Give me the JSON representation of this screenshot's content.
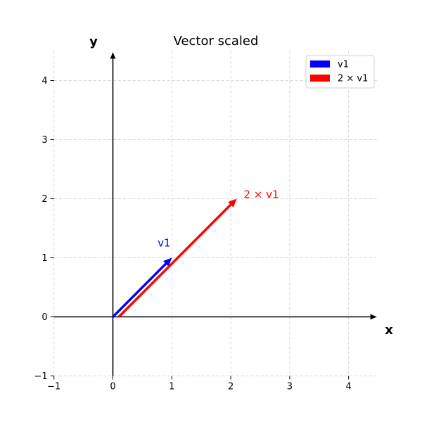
{
  "chart_data": {
    "type": "vector-plot",
    "title": "Vector scaled",
    "xlabel": "x",
    "ylabel": "y",
    "xlim": [
      -1,
      4.5
    ],
    "ylim": [
      -1,
      4.5
    ],
    "xticks": [
      -1,
      0,
      1,
      2,
      3,
      4
    ],
    "yticks": [
      -1,
      0,
      1,
      2,
      3,
      4
    ],
    "x_tick_labels": [
      "−1",
      "0",
      "1",
      "2",
      "3",
      "4"
    ],
    "y_tick_labels": [
      "−1",
      "0",
      "1",
      "2",
      "3",
      "4"
    ],
    "grid": true,
    "legend_position": "top-right",
    "series": [
      {
        "name": "v1",
        "color": "#0000ff",
        "origin": [
          0,
          0
        ],
        "vector": [
          1,
          1
        ],
        "label": "v1"
      },
      {
        "name": "2 × v1",
        "color": "#ff0000",
        "origin": [
          0.1,
          0
        ],
        "vector": [
          2,
          2
        ],
        "label": "2 × v1"
      }
    ]
  }
}
